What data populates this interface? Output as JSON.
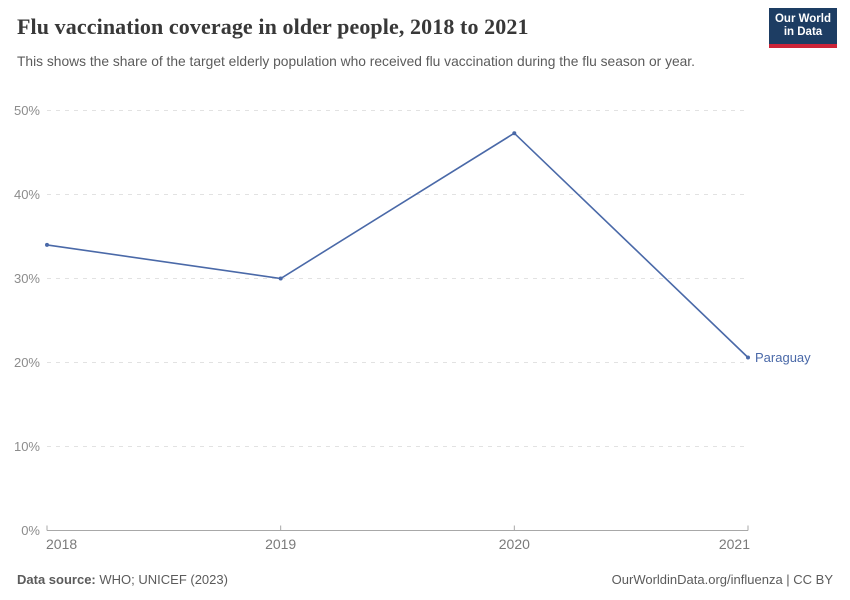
{
  "header": {
    "title": "Flu vaccination coverage in older people, 2018 to 2021",
    "subtitle": "This shows the share of the target elderly population who received flu vaccination during the flu season or year.",
    "logo": {
      "line1": "Our World",
      "line2": "in Data",
      "bg_color": "#1d3d63",
      "bar_color": "#cd2438",
      "text_color": "#ffffff"
    }
  },
  "chart_data": {
    "type": "line",
    "title": "Flu vaccination coverage in older people, 2018 to 2021",
    "x": [
      2018,
      2019,
      2020,
      2021
    ],
    "series": [
      {
        "name": "Paraguay",
        "values": [
          34,
          30,
          47.3,
          20.6
        ],
        "color": "#4A69A8"
      }
    ],
    "xlabel": "",
    "ylabel": "",
    "xlim": [
      2018,
      2021
    ],
    "ylim": [
      0,
      50
    ],
    "y_ticks": [
      {
        "value": 0,
        "label": "0%"
      },
      {
        "value": 10,
        "label": "10%"
      },
      {
        "value": 20,
        "label": "20%"
      },
      {
        "value": 30,
        "label": "30%"
      },
      {
        "value": 40,
        "label": "40%"
      },
      {
        "value": 50,
        "label": "50%"
      }
    ],
    "x_ticks": [
      {
        "value": 2018,
        "label": "2018"
      },
      {
        "value": 2019,
        "label": "2019"
      },
      {
        "value": 2020,
        "label": "2020"
      },
      {
        "value": 2021,
        "label": "2021"
      }
    ],
    "grid": "horizontal-dashed",
    "legend": "line-end-label",
    "marker_radius": 2
  },
  "footer": {
    "source_label": "Data source:",
    "source_text": "WHO; UNICEF (2023)",
    "credit": "OurWorldinData.org/influenza | CC BY"
  }
}
